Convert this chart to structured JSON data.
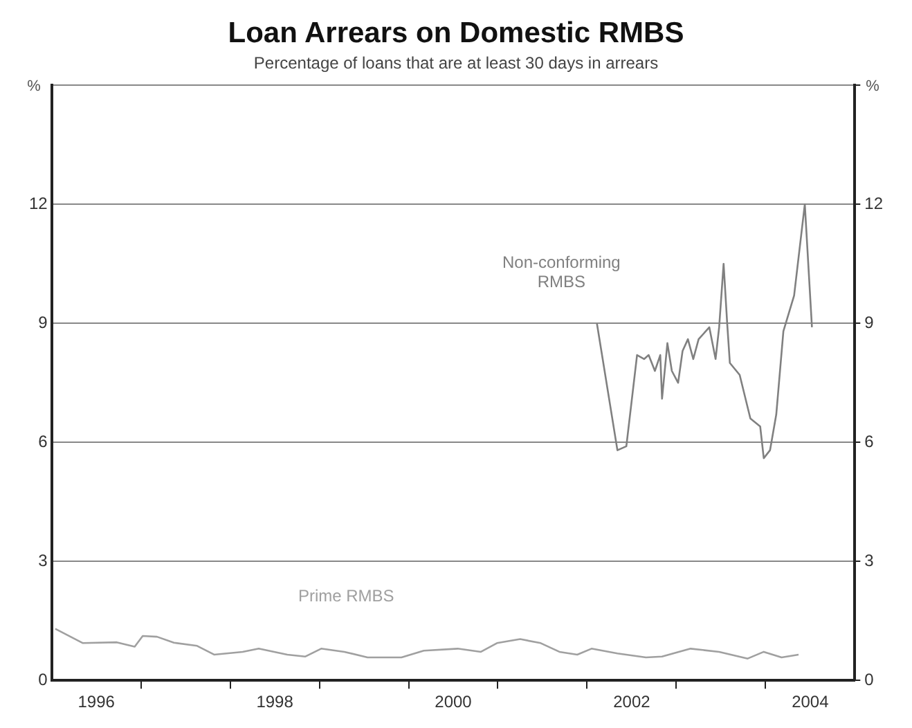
{
  "chart_data": {
    "type": "line",
    "title": "Loan Arrears on Domestic RMBS",
    "subtitle": "Percentage of loans that are at least 30 days in arrears",
    "ylabel": "%",
    "y2label": "%",
    "series": [
      {
        "name": "Non-conforming RMBS",
        "color": "#808080",
        "x": [
          2002.11,
          2002.34,
          2002.44,
          2002.56,
          2002.64,
          2002.69,
          2002.76,
          2002.82,
          2002.84,
          2002.9,
          2002.95,
          2003.02,
          2003.07,
          2003.13,
          2003.19,
          2003.25,
          2003.33,
          2003.37,
          2003.44,
          2003.48,
          2003.53,
          2003.57,
          2003.6,
          2003.71,
          2003.83,
          2003.94,
          2003.98,
          2004.05,
          2004.12,
          2004.2,
          2004.32,
          2004.44,
          2004.52
        ],
        "values": [
          9.0,
          5.8,
          5.9,
          8.2,
          8.1,
          8.2,
          7.8,
          8.2,
          7.1,
          8.5,
          7.8,
          7.5,
          8.3,
          8.6,
          8.1,
          8.6,
          8.8,
          8.9,
          8.1,
          8.9,
          10.5,
          9.0,
          8.0,
          7.7,
          6.6,
          6.4,
          5.6,
          5.8,
          6.7,
          8.8,
          9.7,
          12.0,
          8.9
        ]
      },
      {
        "name": "Prime RMBS",
        "color": "#a0a0a0",
        "x": [
          1996.04,
          1996.35,
          1996.73,
          1996.93,
          1997.02,
          1997.18,
          1997.37,
          1997.63,
          1997.82,
          1998.14,
          1998.32,
          1998.64,
          1998.84,
          1999.02,
          1999.28,
          1999.54,
          1999.92,
          2000.17,
          2000.55,
          2000.81,
          2000.99,
          2001.25,
          2001.48,
          2001.69,
          2001.89,
          2002.05,
          2002.34,
          2002.66,
          2002.84,
          2003.16,
          2003.48,
          2003.8,
          2003.98,
          2004.18,
          2004.37
        ],
        "values": [
          1.3,
          0.94,
          0.96,
          0.85,
          1.12,
          1.1,
          0.95,
          0.87,
          0.65,
          0.72,
          0.8,
          0.65,
          0.6,
          0.8,
          0.72,
          0.58,
          0.58,
          0.75,
          0.8,
          0.72,
          0.94,
          1.04,
          0.94,
          0.72,
          0.65,
          0.8,
          0.68,
          0.58,
          0.6,
          0.8,
          0.72,
          0.55,
          0.72,
          0.58,
          0.65
        ]
      }
    ],
    "xlim": [
      1996,
      2005
    ],
    "xticks": [
      {
        "value": 1996.5,
        "label": "1996"
      },
      {
        "value": 1997,
        "label": null
      },
      {
        "value": 1998,
        "label": null
      },
      {
        "value": 1998.5,
        "label": "1998"
      },
      {
        "value": 1999,
        "label": null
      },
      {
        "value": 2000,
        "label": null
      },
      {
        "value": 2000.5,
        "label": "2000"
      },
      {
        "value": 2001,
        "label": null
      },
      {
        "value": 2002,
        "label": null
      },
      {
        "value": 2002.5,
        "label": "2002"
      },
      {
        "value": 2003,
        "label": null
      },
      {
        "value": 2004,
        "label": null
      },
      {
        "value": 2004.5,
        "label": "2004"
      }
    ],
    "ylim": [
      0,
      15
    ],
    "yticks": [
      0,
      3,
      6,
      9,
      12,
      {
        "value": 15,
        "label": null
      }
    ],
    "y2lim": [
      0,
      15
    ],
    "y2ticks": [
      0,
      3,
      6,
      9,
      12,
      {
        "value": 15,
        "label": null
      }
    ],
    "grid": "y",
    "legend": false,
    "marker": "none",
    "line_style": "solid"
  }
}
